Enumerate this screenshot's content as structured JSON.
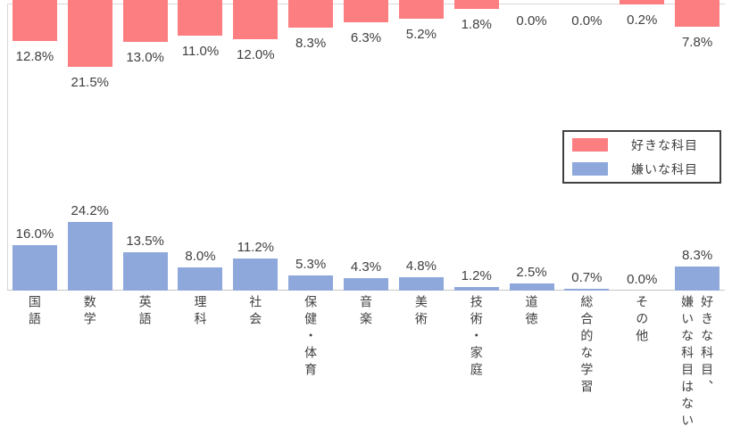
{
  "chart_data": {
    "type": "bar",
    "subtype": "diverging-vertical",
    "title": "",
    "categories": [
      "国語",
      "数学",
      "英語",
      "理科",
      "社会",
      "保健・体育",
      "音楽",
      "美術",
      "技術・家庭",
      "道徳",
      "総合的な学習",
      "その他",
      "好きな科目、\n嫌いな科目はない"
    ],
    "series": [
      {
        "name": "好きな科目",
        "position": "hanging-from-top",
        "color": "#FD7E81",
        "values": [
          12.8,
          21.5,
          13.0,
          11.0,
          12.0,
          8.3,
          6.3,
          5.2,
          1.8,
          0.0,
          0.0,
          0.2,
          7.8
        ]
      },
      {
        "name": "嫌いな科目",
        "position": "rising-from-bottom",
        "color": "#8FA8DC",
        "values": [
          16.0,
          24.2,
          13.5,
          8.0,
          11.2,
          5.3,
          4.3,
          4.8,
          1.2,
          2.5,
          0.7,
          0.0,
          8.3
        ]
      }
    ],
    "value_label_format": "one-decimal-percent",
    "value_label_color": "#404040",
    "axis_color": "#c6c6c6",
    "gridline_color": "#d9d9d9",
    "legend_position": "middle-right",
    "legend_border_color": "#404040",
    "background": "#ffffff"
  },
  "legend": {
    "items": [
      {
        "label": "好きな科目",
        "color": "#FD7E81"
      },
      {
        "label": "嫌いな科目",
        "color": "#8FA8DC"
      }
    ]
  }
}
